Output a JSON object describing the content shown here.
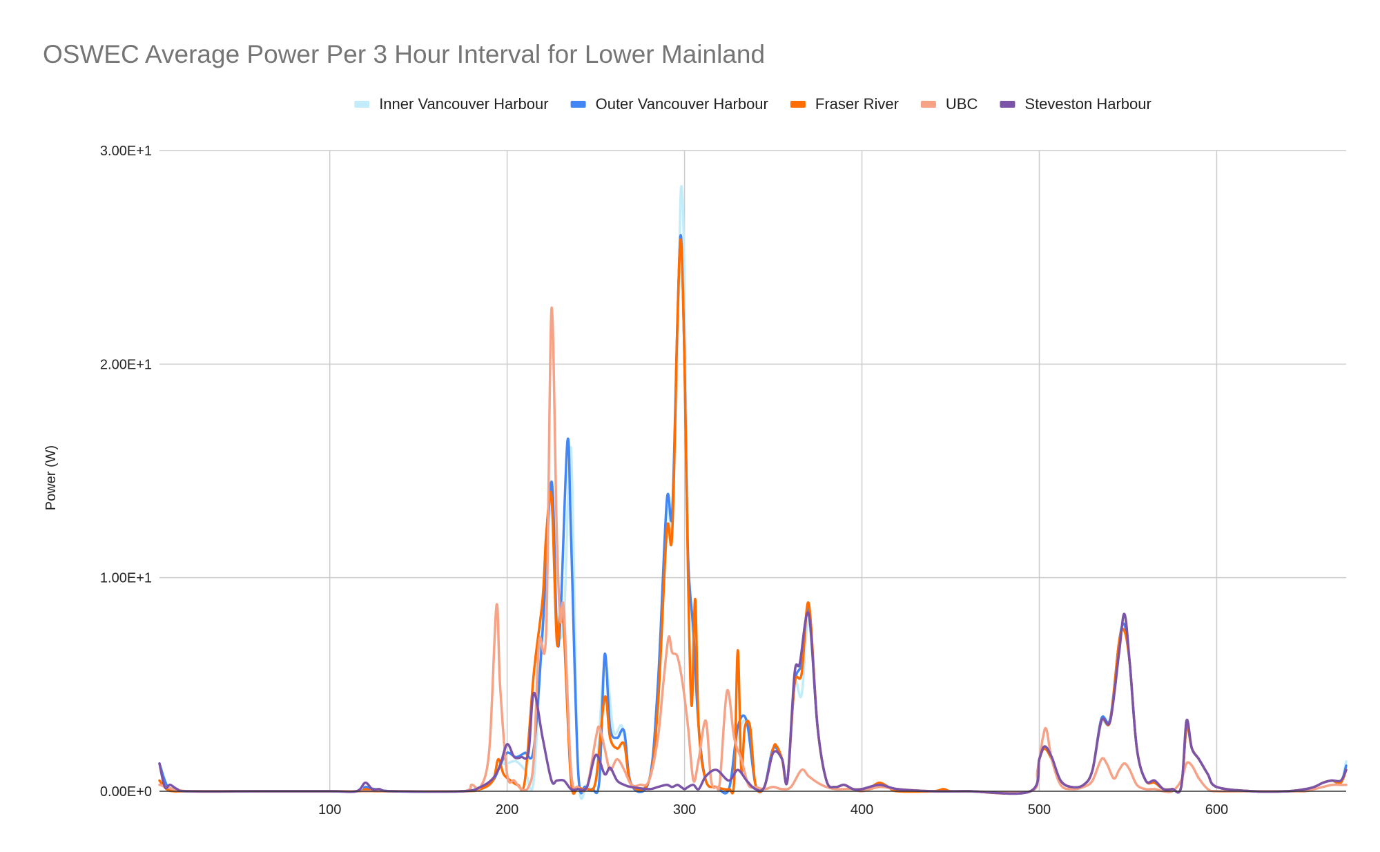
{
  "chart_data": {
    "type": "line",
    "title": "OSWEC Average Power Per 3 Hour Interval for Lower Mainland",
    "xlabel": "",
    "ylabel": "Power (W)",
    "xlim": [
      4,
      673
    ],
    "ylim": [
      0,
      30
    ],
    "x_ticks": [
      100,
      200,
      300,
      400,
      500,
      600
    ],
    "y_ticks": [
      0,
      10,
      20,
      30
    ],
    "y_tick_labels": [
      "0.00E+0",
      "1.00E+1",
      "2.00E+1",
      "3.00E+1"
    ],
    "grid": true,
    "legend_position": "top",
    "series": [
      {
        "name": "Inner Vancouver Harbour",
        "color": "#c3ecfb",
        "x": [
          4,
          8,
          12,
          20,
          60,
          100,
          117,
          120,
          125,
          135,
          175,
          185,
          192,
          196,
          200,
          205,
          210,
          215,
          220,
          225,
          228,
          232,
          236,
          240,
          245,
          250,
          255,
          260,
          265,
          270,
          280,
          285,
          290,
          293,
          296,
          298,
          300,
          302,
          305,
          308,
          312,
          318,
          325,
          330,
          335,
          340,
          345,
          350,
          355,
          358,
          362,
          366,
          370,
          375,
          380,
          385,
          390,
          395,
          400,
          410,
          420,
          440,
          460,
          495,
          500,
          503,
          507,
          512,
          518,
          525,
          530,
          535,
          540,
          545,
          548,
          551,
          555,
          560,
          565,
          570,
          575,
          580,
          583,
          586,
          590,
          595,
          600,
          620,
          640,
          650,
          655,
          660,
          665,
          670,
          673
        ],
        "values": [
          1.3,
          0.3,
          0.1,
          0,
          0,
          0,
          0,
          0.2,
          0.1,
          0,
          0,
          0.2,
          0.5,
          1.2,
          1.3,
          1.4,
          1.0,
          0.5,
          8.0,
          13.5,
          8.0,
          8.0,
          16.0,
          1.0,
          0.3,
          0.5,
          6.0,
          2.8,
          3.0,
          0.4,
          0.5,
          5.0,
          13.0,
          12.5,
          20.0,
          28.2,
          24.0,
          11.0,
          7.0,
          3.0,
          0.5,
          0.2,
          0.1,
          2.5,
          3.2,
          0.3,
          0.2,
          2.0,
          1.5,
          0.5,
          5.0,
          4.5,
          8.0,
          3.0,
          0.5,
          0.2,
          0.3,
          0.1,
          0.1,
          0.3,
          0.1,
          0,
          0,
          0,
          1.5,
          2.0,
          1.5,
          0.5,
          0.2,
          0.3,
          1.0,
          3.2,
          3.3,
          7.0,
          7.5,
          6.0,
          2.0,
          0.5,
          0.4,
          0.1,
          0.1,
          0.2,
          3.0,
          2.0,
          1.5,
          0.8,
          0.2,
          0,
          0,
          0.1,
          0.2,
          0.4,
          0.5,
          0.4,
          1.4
        ]
      },
      {
        "name": "Outer Vancouver Harbour",
        "color": "#4285f4",
        "x": [
          4,
          8,
          12,
          20,
          60,
          100,
          117,
          120,
          125,
          135,
          175,
          185,
          192,
          196,
          200,
          205,
          210,
          215,
          220,
          225,
          228,
          230,
          234,
          236,
          240,
          244,
          248,
          252,
          255,
          258,
          262,
          266,
          270,
          280,
          285,
          290,
          293,
          296,
          298,
          300,
          302,
          305,
          308,
          312,
          318,
          325,
          330,
          335,
          340,
          345,
          350,
          355,
          358,
          362,
          366,
          370,
          375,
          380,
          385,
          390,
          395,
          400,
          410,
          420,
          440,
          460,
          495,
          500,
          503,
          507,
          512,
          518,
          525,
          530,
          535,
          540,
          545,
          548,
          551,
          555,
          560,
          565,
          570,
          575,
          580,
          583,
          586,
          590,
          595,
          600,
          620,
          640,
          650,
          655,
          660,
          665,
          670,
          673
        ],
        "values": [
          1.3,
          0.3,
          0.1,
          0,
          0,
          0,
          0,
          0.2,
          0.1,
          0,
          0,
          0.2,
          0.5,
          1.2,
          1.8,
          1.6,
          1.8,
          2.0,
          7.5,
          14.5,
          7.5,
          8.0,
          16.4,
          12.0,
          1.0,
          0.2,
          0.1,
          0.5,
          6.4,
          3.0,
          2.5,
          2.8,
          0.3,
          0.5,
          5.0,
          13.6,
          13.0,
          22.0,
          26.0,
          20.0,
          11.0,
          7.5,
          3.0,
          0.5,
          0.2,
          0.1,
          3.0,
          3.3,
          0.3,
          0.2,
          2.0,
          1.5,
          0.5,
          5.0,
          6.0,
          8.5,
          3.0,
          0.5,
          0.2,
          0.3,
          0.1,
          0.1,
          0.3,
          0.1,
          0,
          0,
          0,
          1.5,
          2.0,
          1.5,
          0.5,
          0.2,
          0.3,
          1.0,
          3.4,
          3.4,
          7.0,
          7.8,
          6.0,
          2.0,
          0.5,
          0.4,
          0.1,
          0.1,
          0.2,
          3.0,
          2.0,
          1.5,
          0.8,
          0.2,
          0,
          0,
          0.1,
          0.2,
          0.4,
          0.5,
          0.4,
          1.2
        ]
      },
      {
        "name": "Fraser River",
        "color": "#ff6d01",
        "x": [
          4,
          8,
          12,
          20,
          60,
          100,
          117,
          120,
          125,
          135,
          175,
          185,
          192,
          195,
          198,
          202,
          206,
          210,
          215,
          220,
          222,
          225,
          228,
          230,
          232,
          236,
          240,
          245,
          250,
          255,
          258,
          262,
          266,
          270,
          280,
          285,
          290,
          293,
          296,
          298,
          300,
          302,
          304,
          306,
          308,
          312,
          318,
          325,
          328,
          330,
          332,
          334,
          337,
          340,
          345,
          350,
          352,
          355,
          358,
          362,
          366,
          370,
          375,
          380,
          385,
          390,
          395,
          400,
          405,
          410,
          415,
          420,
          440,
          446,
          450,
          460,
          495,
          500,
          503,
          507,
          512,
          518,
          525,
          530,
          535,
          540,
          545,
          548,
          551,
          555,
          560,
          565,
          570,
          575,
          580,
          583,
          586,
          590,
          595,
          600,
          620,
          640,
          650,
          655,
          660,
          665,
          670,
          673
        ],
        "values": [
          0.5,
          0.1,
          0,
          0,
          0,
          0,
          0,
          0.1,
          0,
          0,
          0,
          0.1,
          0.5,
          1.5,
          0.8,
          0.5,
          0.3,
          0.5,
          5.5,
          9.0,
          12.0,
          13.8,
          7.0,
          8.5,
          7.5,
          0.5,
          0.2,
          0.1,
          0.5,
          4.4,
          2.5,
          2.0,
          2.2,
          0.3,
          0.5,
          4.0,
          12.2,
          12.0,
          22.0,
          25.8,
          20.0,
          10.0,
          4.0,
          9.0,
          3.0,
          0.5,
          0.2,
          0.1,
          0.5,
          6.6,
          1.0,
          3.0,
          3.0,
          0.3,
          0.2,
          2.0,
          2.1,
          1.5,
          0.5,
          5.0,
          5.5,
          8.8,
          3.0,
          0.5,
          0.2,
          0.3,
          0.1,
          0.1,
          0.2,
          0.4,
          0.2,
          0,
          0,
          0.1,
          0,
          0,
          0,
          1.5,
          2.0,
          1.5,
          0.5,
          0.2,
          0.3,
          1.0,
          3.3,
          3.3,
          7.0,
          7.5,
          6.0,
          2.0,
          0.5,
          0.4,
          0.1,
          0.1,
          0.2,
          3.0,
          2.0,
          1.5,
          0.8,
          0.2,
          0,
          0,
          0.1,
          0.2,
          0.4,
          0.5,
          0.4,
          1.0
        ]
      },
      {
        "name": "UBC",
        "color": "#f6a287",
        "x": [
          4,
          20,
          60,
          100,
          140,
          175,
          180,
          185,
          190,
          194,
          196,
          200,
          204,
          208,
          212,
          215,
          218,
          222,
          225,
          228,
          230,
          232,
          236,
          240,
          245,
          250,
          252,
          255,
          258,
          262,
          266,
          270,
          275,
          280,
          285,
          288,
          291,
          293,
          296,
          299,
          302,
          305,
          308,
          312,
          315,
          318,
          320,
          324,
          328,
          332,
          336,
          340,
          345,
          350,
          355,
          360,
          366,
          370,
          375,
          380,
          385,
          390,
          395,
          400,
          410,
          420,
          440,
          460,
          495,
          499,
          502,
          504,
          507,
          512,
          518,
          525,
          530,
          535,
          538,
          542,
          545,
          548,
          551,
          555,
          560,
          565,
          570,
          575,
          580,
          583,
          586,
          590,
          595,
          600,
          620,
          640,
          650,
          655,
          660,
          665,
          670,
          673
        ],
        "values": [
          0.3,
          0,
          0,
          0,
          0,
          0,
          0.3,
          0.2,
          2.0,
          8.7,
          5.0,
          0.8,
          0.5,
          0.1,
          0.2,
          1.5,
          7.0,
          7.5,
          22.6,
          12.0,
          8.0,
          8.5,
          1.0,
          0.2,
          0.2,
          2.5,
          3.0,
          2.0,
          1.0,
          1.5,
          1.0,
          0.3,
          0.3,
          0.5,
          2.5,
          5.0,
          7.2,
          6.5,
          6.3,
          5.0,
          3.0,
          0.5,
          1.5,
          3.3,
          0.5,
          0.2,
          0.5,
          4.7,
          2.5,
          1.5,
          0.3,
          0.2,
          0.1,
          0.2,
          0.1,
          0.2,
          1.0,
          0.7,
          0.4,
          0.2,
          0.1,
          0.1,
          0.1,
          0,
          0.2,
          0.1,
          0,
          0,
          0,
          1.0,
          2.5,
          2.9,
          1.5,
          0.3,
          0.1,
          0.2,
          0.5,
          1.5,
          1.3,
          0.6,
          1.0,
          1.3,
          1.0,
          0.3,
          0.1,
          0.1,
          0,
          0,
          0.5,
          1.3,
          1.2,
          0.6,
          0.1,
          0,
          0,
          0,
          0,
          0.1,
          0.2,
          0.3,
          0.3,
          0.3
        ]
      },
      {
        "name": "Steveston Harbour",
        "color": "#7b54a8",
        "x": [
          4,
          7,
          10,
          14,
          20,
          60,
          100,
          115,
          120,
          124,
          128,
          135,
          175,
          185,
          192,
          196,
          200,
          204,
          208,
          212,
          215,
          220,
          225,
          228,
          232,
          236,
          240,
          245,
          250,
          255,
          258,
          262,
          266,
          270,
          280,
          285,
          290,
          293,
          296,
          298,
          300,
          302,
          305,
          308,
          312,
          318,
          325,
          330,
          335,
          340,
          345,
          350,
          355,
          358,
          362,
          365,
          370,
          375,
          380,
          385,
          390,
          395,
          400,
          410,
          420,
          440,
          460,
          495,
          500,
          503,
          507,
          512,
          518,
          525,
          530,
          535,
          540,
          545,
          548,
          551,
          555,
          560,
          565,
          570,
          575,
          580,
          583,
          586,
          590,
          595,
          600,
          620,
          640,
          650,
          655,
          660,
          665,
          670,
          673
        ],
        "values": [
          1.3,
          0.2,
          0.3,
          0.1,
          0,
          0,
          0,
          0,
          0.4,
          0.1,
          0.1,
          0,
          0,
          0.2,
          0.6,
          1.2,
          2.2,
          1.6,
          1.6,
          1.8,
          4.6,
          2.5,
          0.5,
          0.5,
          0.5,
          0.1,
          0.1,
          0.2,
          1.7,
          0.8,
          1.1,
          0.5,
          0.3,
          0.2,
          0.1,
          0.2,
          0.3,
          0.2,
          0.3,
          0.2,
          0.1,
          0.2,
          0.3,
          0.1,
          0.7,
          1.0,
          0.5,
          1.0,
          0.5,
          0.1,
          0.2,
          1.8,
          1.5,
          0.5,
          5.5,
          6.0,
          8.3,
          3.0,
          0.5,
          0.2,
          0.3,
          0.1,
          0.1,
          0.3,
          0.1,
          0,
          0,
          0,
          1.5,
          2.1,
          1.6,
          0.5,
          0.2,
          0.3,
          1.0,
          3.3,
          3.3,
          6.5,
          8.3,
          6.0,
          2.0,
          0.5,
          0.5,
          0.1,
          0.1,
          0.2,
          3.3,
          2.0,
          1.5,
          0.8,
          0.2,
          0,
          0,
          0.1,
          0.2,
          0.4,
          0.5,
          0.5,
          1.0
        ]
      }
    ]
  }
}
